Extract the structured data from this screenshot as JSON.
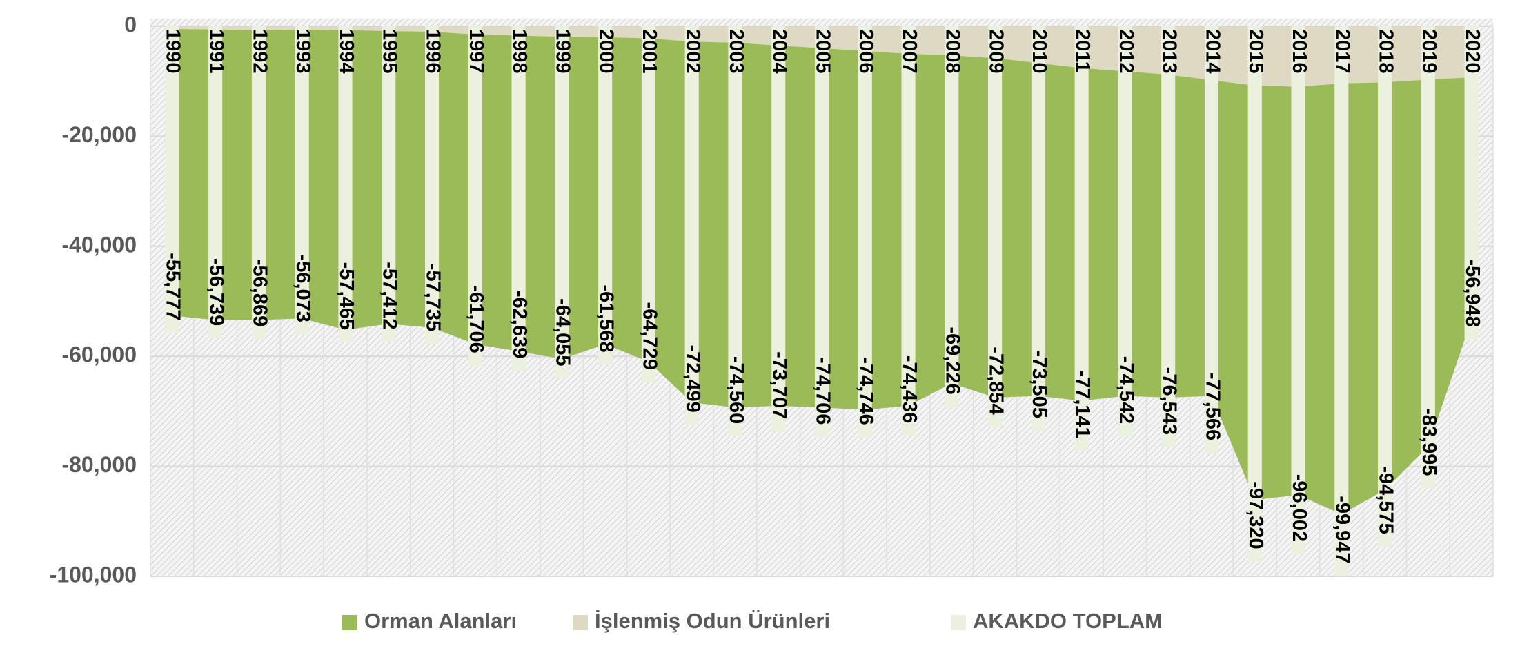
{
  "chart_data": {
    "type": "area",
    "categories": [
      "1990",
      "1991",
      "1992",
      "1993",
      "1994",
      "1995",
      "1996",
      "1997",
      "1998",
      "1999",
      "2000",
      "2001",
      "2002",
      "2003",
      "2004",
      "2005",
      "2006",
      "2007",
      "2008",
      "2009",
      "2010",
      "2011",
      "2012",
      "2013",
      "2014",
      "2015",
      "2016",
      "2017",
      "2018",
      "2019",
      "2020"
    ],
    "series": [
      {
        "name": "Orman Alanları",
        "type": "area",
        "color": "#9bbb59",
        "values": [
          -52100,
          -52800,
          -52700,
          -52500,
          -54500,
          -53200,
          -53800,
          -56300,
          -57400,
          -58600,
          -55800,
          -58800,
          -65600,
          -66300,
          -65500,
          -65300,
          -65200,
          -64000,
          -59600,
          -61700,
          -60500,
          -60500,
          -59000,
          -58700,
          -57400,
          -75300,
          -74200,
          -78300,
          -74100,
          -66700,
          -44100
        ]
      },
      {
        "name": "İşlenmiş Odun Ürünleri",
        "type": "area",
        "color": "#ddd9c3",
        "values": [
          -500,
          -600,
          -700,
          -600,
          -700,
          -900,
          -1000,
          -1500,
          -1700,
          -1900,
          -2000,
          -2200,
          -2800,
          -3000,
          -3500,
          -4000,
          -4500,
          -5000,
          -5300,
          -5800,
          -6700,
          -7600,
          -8200,
          -8800,
          -9800,
          -10800,
          -11000,
          -10400,
          -10200,
          -9700,
          -9300
        ]
      },
      {
        "name": "AKAKDO TOPLAM",
        "type": "bar",
        "color": "#ebf1de",
        "values": [
          -55777,
          -56739,
          -56869,
          -56073,
          -57465,
          -57412,
          -57735,
          -61706,
          -62639,
          -64055,
          -61568,
          -64729,
          -72499,
          -74560,
          -73707,
          -74706,
          -74746,
          -74436,
          -69226,
          -72854,
          -73505,
          -77141,
          -74542,
          -76543,
          -77566,
          -97320,
          -96002,
          -99947,
          -94575,
          -83995,
          -56948
        ],
        "value_labels": [
          "-55,777",
          "-56,739",
          "-56,869",
          "-56,073",
          "-57,465",
          "-57,412",
          "-57,735",
          "-61,706",
          "-62,639",
          "-64,055",
          "-61,568",
          "-64,729",
          "-72,499",
          "-74,560",
          "-73,707",
          "-74,706",
          "-74,746",
          "-74,436",
          "-69,226",
          "-72,854",
          "-73,505",
          "-77,141",
          "-74,542",
          "-76,543",
          "-77,566",
          "-97,320",
          "-96,002",
          "-99,947",
          "-94,575",
          "-83,995",
          "-56,948"
        ]
      }
    ],
    "ylim": [
      -100000,
      0
    ],
    "yticks": [
      0,
      {
        "value": -20000,
        "label": "-20,000"
      },
      {
        "value": -40000,
        "label": "-40,000"
      },
      {
        "value": -60000,
        "label": "-60,000"
      },
      {
        "value": -80000,
        "label": "-80,000"
      },
      {
        "value": -100000,
        "label": "-100,000"
      }
    ],
    "grid": true,
    "legend": "bottom"
  }
}
